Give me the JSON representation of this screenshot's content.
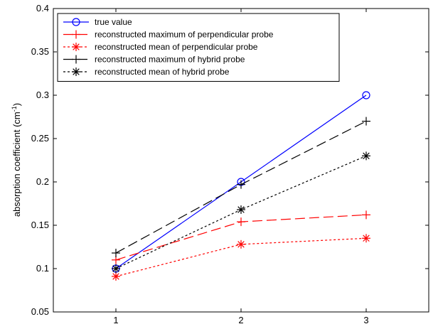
{
  "chart_data": {
    "type": "line",
    "title": "",
    "xlabel": "",
    "ylabel": "absorption coefficient (cm",
    "ylabel_sup": "-1",
    "ylabel_close": ")",
    "xlim": [
      0.5,
      3.5
    ],
    "ylim": [
      0.05,
      0.4
    ],
    "xticks": [
      1,
      2,
      3
    ],
    "xtick_labels": [
      "1",
      "2",
      "3"
    ],
    "yticks": [
      0.05,
      0.1,
      0.15,
      0.2,
      0.25,
      0.3,
      0.35,
      0.4
    ],
    "ytick_labels": [
      "0.05",
      "0.1",
      "0.15",
      "0.2",
      "0.25",
      "0.3",
      "0.35",
      "0.4"
    ],
    "grid": false,
    "legend_position": "top-left",
    "x": [
      1,
      2,
      3
    ],
    "series": [
      {
        "name": "true value",
        "values": [
          0.1,
          0.2,
          0.3
        ],
        "color": "#0000ff",
        "dash": "solid",
        "marker": "circle"
      },
      {
        "name": "reconstructed maximum of perpendicular probe",
        "values": [
          0.11,
          0.154,
          0.162
        ],
        "color": "#ff0000",
        "dash": "longdash",
        "marker": "plus"
      },
      {
        "name": "reconstructed mean of perpendicular probe",
        "values": [
          0.091,
          0.128,
          0.135
        ],
        "color": "#ff0000",
        "dash": "dotted",
        "marker": "asterisk"
      },
      {
        "name": "reconstructed maximum of hybrid probe",
        "values": [
          0.118,
          0.197,
          0.27
        ],
        "color": "#000000",
        "dash": "longdash",
        "marker": "plus"
      },
      {
        "name": "reconstructed mean of hybrid probe",
        "values": [
          0.1,
          0.168,
          0.23
        ],
        "color": "#000000",
        "dash": "dotted",
        "marker": "asterisk"
      }
    ]
  }
}
